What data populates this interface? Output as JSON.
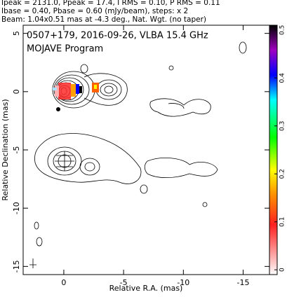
{
  "chart_data": {
    "type": "contour",
    "header": [
      "Ipeak = 2131.0, Ppeak = 17.4, I RMS = 0.10, P RMS = 0.11",
      "Ibase = 0.40, Pbase = 0.60 (mJy/beam), steps: x 2",
      "Beam: 1.04x0.51 mas at -4.3 deg., Nat. Wgt. (no taper)"
    ],
    "title": "0507+179, 2016-09-26, VLBA 15.4 GHz",
    "subtitle": "MOJAVE Program",
    "xlabel": "Relative R.A. (mas)",
    "ylabel": "Relative Declination (mas)",
    "xlim": [
      3.4,
      -17.2
    ],
    "xticks": [
      0,
      -5,
      -10,
      -15
    ],
    "ylim": [
      -15.7,
      5.7
    ],
    "yticks": [
      5,
      0,
      -5,
      -10,
      -15
    ],
    "colorbar": {
      "lim": [
        -0.01,
        0.51
      ],
      "ticks": [
        0.5,
        0.4,
        0.3,
        0.2,
        0.1,
        0
      ]
    }
  }
}
